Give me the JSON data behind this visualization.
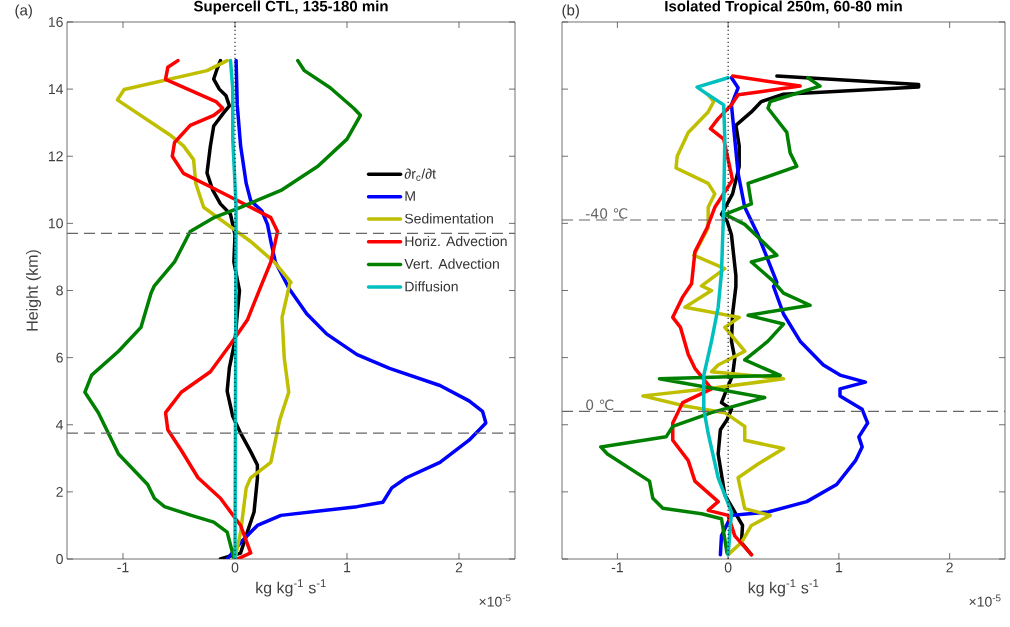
{
  "chart_data": [
    {
      "type": "line",
      "title": "Supercell CTL, 135-180 min",
      "xlabel": "kg kg$^{-1}$ s$^{-1}$",
      "ylabel": "Height (km)",
      "annotations": [
        "(a)",
        "×10$^{-5}$"
      ],
      "xlim": [
        -1.5,
        2.5
      ],
      "xticks": [
        -1,
        0,
        1,
        2
      ],
      "ylim": [
        0,
        16
      ],
      "yticks": [
        0,
        2,
        4,
        6,
        8,
        10,
        12,
        14,
        16
      ],
      "legend": "right",
      "marker": "none",
      "line_style": "solid",
      "ref_lines": [
        {
          "axis": "y",
          "value": 9.7,
          "color": "#666666",
          "line_style": "dashed"
        },
        {
          "axis": "y",
          "value": 3.75,
          "color": "#666666",
          "line_style": "dashed"
        },
        {
          "axis": "x",
          "value": 0,
          "color": "#000000",
          "line_style": "dotted"
        }
      ],
      "series": [
        {
          "name": "∂r$_{c}$/∂t",
          "color": "#000000",
          "x": [
            -0.13,
            0.05,
            0.11,
            0.17,
            0.2,
            0.2,
            0.14,
            0.05,
            -0.02,
            -0.07,
            -0.05,
            0,
            0.02,
            0.04,
            -0.01,
            0,
            -0.04,
            -0.13,
            -0.2,
            -0.25,
            -0.22,
            -0.19,
            -0.1,
            -0.05,
            -0.08,
            -0.14,
            -0.19,
            -0.16,
            -0.13
          ],
          "values": [
            0,
            0.18,
            0.8,
            1.4,
            2.4,
            2.8,
            3.2,
            3.75,
            4.25,
            5.0,
            5.7,
            6.5,
            7.3,
            8.0,
            8.85,
            9.66,
            10.27,
            10.58,
            11.0,
            11.5,
            12.3,
            12.9,
            13.3,
            13.5,
            13.8,
            14.0,
            14.3,
            14.6,
            14.85
          ]
        },
        {
          "name": "M",
          "color": "#0000ff",
          "x": [
            -0.07,
            0.05,
            0.2,
            0.41,
            1.09,
            1.32,
            1.4,
            1.53,
            1.83,
            2.09,
            2.24,
            2.21,
            2.09,
            1.83,
            1.38,
            1.09,
            0.82,
            0.64,
            0.49,
            0.47,
            0.36,
            0.32,
            0.29,
            0.24,
            0.14,
            0.1,
            0.05,
            0.02,
            0.01
          ],
          "values": [
            0,
            0.49,
            1.0,
            1.3,
            1.56,
            1.69,
            2.12,
            2.42,
            2.88,
            3.54,
            4.05,
            4.4,
            4.71,
            5.17,
            5.68,
            6.09,
            6.7,
            7.31,
            8.02,
            8.14,
            8.85,
            9.46,
            9.97,
            10.37,
            10.68,
            11.19,
            12.31,
            13.53,
            14.85
          ]
        },
        {
          "name": "Sedimentation",
          "color": "#bfbf00",
          "x": [
            0,
            0.05,
            0.1,
            0.14,
            0.32,
            0.4,
            0.48,
            0.44,
            0.42,
            0.49,
            0.5,
            0.35,
            0.14,
            -0.07,
            -0.28,
            -0.35,
            -0.37,
            -0.46,
            -0.57,
            -1.05,
            -0.99,
            -0.25,
            -0.07
          ],
          "values": [
            0,
            0.8,
            2.12,
            2.42,
            2.88,
            4.15,
            4.97,
            5.98,
            7.2,
            8.22,
            8.24,
            8.85,
            9.46,
            9.97,
            10.48,
            11.19,
            11.9,
            12.31,
            12.61,
            13.68,
            13.99,
            14.55,
            14.85
          ]
        },
        {
          "name": "Horiz. Advection",
          "color": "#ff0000",
          "x": [
            0.02,
            0.14,
            0.05,
            -0.13,
            -0.33,
            -0.48,
            -0.6,
            -0.62,
            -0.48,
            -0.22,
            -0.04,
            0.11,
            0.24,
            0.32,
            0.38,
            0.32,
            -0.22,
            -0.46,
            -0.56,
            -0.54,
            -0.4,
            -0.19,
            -0.11,
            -0.17,
            -0.62,
            -0.6,
            -0.51
          ],
          "values": [
            0,
            0.18,
            1.0,
            1.81,
            2.42,
            3.24,
            3.85,
            4.36,
            4.97,
            5.58,
            6.4,
            7.12,
            8.2,
            8.85,
            9.76,
            10.17,
            11.09,
            11.49,
            12.0,
            12.41,
            12.92,
            13.22,
            13.43,
            13.63,
            14.29,
            14.65,
            14.85
          ]
        },
        {
          "name": "Vert. Advection",
          "color": "#008000",
          "x": [
            -0.01,
            -0.07,
            -0.19,
            -0.39,
            -0.63,
            -0.72,
            -0.78,
            -1.04,
            -1.22,
            -1.34,
            -1.28,
            -1.04,
            -0.84,
            -0.75,
            -0.72,
            -0.54,
            -0.4,
            -0.19,
            0.05,
            0.41,
            0.74,
            1.0,
            1.12,
            1.06,
            0.85,
            0.62,
            0.56
          ],
          "values": [
            0.03,
            0.8,
            1.1,
            1.3,
            1.56,
            1.81,
            2.22,
            3.13,
            4.36,
            4.97,
            5.48,
            6.19,
            6.9,
            7.92,
            8.14,
            8.85,
            9.76,
            10.17,
            10.48,
            10.98,
            11.7,
            12.51,
            13.22,
            13.43,
            14.04,
            14.55,
            14.85
          ]
        },
        {
          "name": "Diffusion",
          "color": "#00bfbf",
          "x": [
            0,
            0.01,
            -0.02,
            -0.02,
            -0.04
          ],
          "values": [
            0,
            10.5,
            12.5,
            14.0,
            14.85
          ]
        }
      ]
    },
    {
      "type": "line",
      "title": "Isolated Tropical 250m, 60-80 min",
      "xlabel": "kg kg$^{-1}$ s$^{-1}$",
      "annotations": [
        "(b)",
        "×10$^{-5}$"
      ],
      "xlim": [
        -1.5,
        2.5
      ],
      "xticks": [
        -1,
        0,
        1,
        2
      ],
      "ylim": [
        0,
        16
      ],
      "yticks": [
        0,
        2,
        4,
        6,
        8,
        10,
        12,
        14,
        16
      ],
      "tick_labels": "x",
      "marker": "none",
      "line_style": "solid",
      "ref_lines": [
        {
          "axis": "y",
          "value": 10.1,
          "label": "-40 ℃",
          "color": "#666666",
          "line_style": "dashed"
        },
        {
          "axis": "y",
          "value": 4.4,
          "label": "0 ℃",
          "color": "#666666",
          "line_style": "dashed"
        },
        {
          "axis": "x",
          "value": 0,
          "color": "#000000",
          "line_style": "dotted"
        }
      ],
      "series": [
        {
          "color": "#000000",
          "x": [
            0.21,
            0.12,
            0.13,
            0.06,
            -0.03,
            -0.09,
            -0.07,
            -0.01,
            0.03,
            -0.06,
            -0.03,
            0.04,
            0.06,
            0.03,
            0.04,
            0.07,
            0.07,
            0.03,
            -0.01,
            -0.06,
            0.04,
            0.1,
            0.1,
            0.07,
            0.21,
            0.3,
            0.5,
            1.72,
            1.72,
            0.44
          ],
          "values": [
            0.13,
            0.49,
            1.0,
            1.4,
            1.91,
            3.13,
            3.85,
            4.15,
            4.46,
            4.66,
            4.91,
            5.47,
            5.98,
            6.49,
            7.3,
            8.12,
            8.44,
            9.66,
            10.07,
            10.27,
            10.88,
            11.7,
            12.31,
            12.92,
            13.32,
            13.63,
            13.85,
            14.06,
            14.14,
            14.39
          ]
        },
        {
          "color": "#0000ff",
          "x": [
            -0.07,
            -0.06,
            0.03,
            0.36,
            0.71,
            0.98,
            1.15,
            1.21,
            1.18,
            1.26,
            1.21,
            1.01,
            1.01,
            1.24,
            1.01,
            0.86,
            0.65,
            0.5,
            0.41,
            0.44,
            0.27,
            0.15,
            0.09,
            0.06,
            0.03,
            0.09,
            0.03
          ],
          "values": [
            0.13,
            0.69,
            1.3,
            1.4,
            1.71,
            2.22,
            2.93,
            3.34,
            3.64,
            4.05,
            4.46,
            4.86,
            5.07,
            5.27,
            5.48,
            5.78,
            6.49,
            7.3,
            8.12,
            8.24,
            9.66,
            10.48,
            11.49,
            12.51,
            13.53,
            14.04,
            14.34
          ]
        },
        {
          "color": "#bfbf00",
          "x": [
            0,
            0.12,
            0.21,
            0.38,
            0.15,
            0.09,
            0.27,
            0.5,
            0.15,
            0.15,
            -0.03,
            -0.39,
            -0.77,
            -0.18,
            0.5,
            -0.15,
            -0.09,
            0.15,
            -0.03,
            0.1,
            -0.39,
            -0.15,
            -0.24,
            -0.03,
            -0.31,
            -0.18,
            -0.18,
            -0.12,
            -0.18,
            -0.47,
            -0.46,
            -0.36,
            -0.18,
            -0.13,
            -0.18
          ],
          "values": [
            0.13,
            0.49,
            1.0,
            1.3,
            1.5,
            2.42,
            2.83,
            3.29,
            3.54,
            3.95,
            4.36,
            4.56,
            4.86,
            5.07,
            5.37,
            5.58,
            5.78,
            6.19,
            6.9,
            7.2,
            7.5,
            8.0,
            8.14,
            8.65,
            9.05,
            9.87,
            10.48,
            10.88,
            11.19,
            11.65,
            12.0,
            12.71,
            13.32,
            13.63,
            13.83
          ]
        },
        {
          "color": "#ff0000",
          "x": [
            0.21,
            0.06,
            0,
            -0.18,
            -0.09,
            -0.3,
            -0.36,
            -0.5,
            -0.5,
            -0.41,
            -0.15,
            -0.3,
            -0.36,
            -0.43,
            -0.5,
            -0.41,
            -0.33,
            -0.3,
            -0.19,
            -0.12,
            0.04,
            -0.04,
            -0.16,
            -0.09,
            0.03,
            0.09,
            0.65,
            0.04
          ],
          "values": [
            0.13,
            0.69,
            1.3,
            1.45,
            1.71,
            2.32,
            2.93,
            3.54,
            4.05,
            4.66,
            5.07,
            5.68,
            6.09,
            6.9,
            7.2,
            7.81,
            8.2,
            9.15,
            9.87,
            10.48,
            11.29,
            12.51,
            12.82,
            13.12,
            13.53,
            13.83,
            14.09,
            14.39
          ]
        },
        {
          "color": "#008000",
          "x": [
            -0.01,
            -0.06,
            -0.24,
            -0.59,
            -0.68,
            -0.71,
            -1.09,
            -1.15,
            -0.56,
            -0.5,
            -0.15,
            0.33,
            -0.62,
            0.47,
            0.15,
            0.36,
            0.5,
            0.18,
            0.74,
            0.5,
            0.4,
            0.21,
            0.44,
            0.15,
            -0.03,
            0.21,
            0.18,
            0.62,
            0.56,
            0.53,
            0.36,
            0.38,
            0.83,
            0.72
          ],
          "values": [
            0.18,
            1.2,
            1.35,
            1.51,
            1.81,
            2.32,
            3.13,
            3.34,
            3.64,
            3.95,
            4.36,
            4.81,
            5.37,
            5.47,
            5.93,
            6.49,
            7.0,
            7.26,
            7.56,
            7.92,
            8.3,
            8.85,
            9.05,
            9.97,
            10.27,
            10.58,
            11.19,
            11.7,
            12.1,
            12.71,
            13.43,
            13.63,
            14.09,
            14.34
          ]
        },
        {
          "color": "#00bfbf",
          "x": [
            0,
            0.03,
            -0.09,
            -0.18,
            -0.22,
            -0.22,
            -0.15,
            -0.09,
            -0.06,
            -0.04,
            -0.03,
            -0.04,
            -0.18,
            -0.28,
            0
          ],
          "values": [
            0.13,
            1.4,
            2.42,
            3.74,
            4.46,
            5.47,
            6.49,
            7.5,
            8.53,
            10.48,
            12.51,
            13.53,
            13.83,
            14.06,
            14.34
          ]
        }
      ]
    }
  ]
}
